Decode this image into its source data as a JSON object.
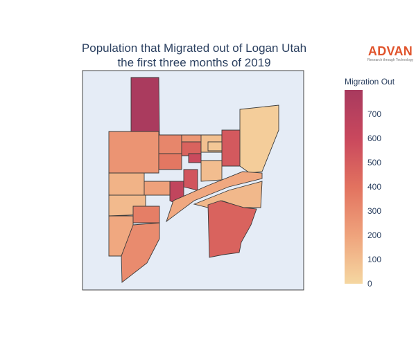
{
  "title": {
    "line1": "Population that Migrated out of Logan Utah",
    "line2": "the first three months of 2019"
  },
  "logo": {
    "text": "ADVAN",
    "tagline": "Research through Technology",
    "color": "#e0532b"
  },
  "colorbar": {
    "title": "Migration Out",
    "min": 0,
    "max": 800,
    "ticks": [
      0,
      100,
      200,
      300,
      400,
      500,
      600,
      700
    ],
    "colorscale": [
      "#f5d7a1",
      "#efa37c",
      "#e2725f",
      "#c9485d",
      "#a83a5e"
    ]
  },
  "map": {
    "background": "#e5ecf6",
    "border_color": "#444444"
  },
  "chart_data": {
    "type": "heatmap",
    "title": "Population that Migrated out of Logan Utah the first three months of 2019",
    "colorbar_title": "Migration Out",
    "range": [
      0,
      800
    ],
    "regions": [
      {
        "id": "north-tall",
        "value": 790
      },
      {
        "id": "east-strip",
        "value": 40
      },
      {
        "id": "west-upper",
        "value": 260
      },
      {
        "id": "west-mid",
        "value": 140
      },
      {
        "id": "west-lower",
        "value": 110
      },
      {
        "id": "west-south",
        "value": 180
      },
      {
        "id": "south-long",
        "value": 300
      },
      {
        "id": "center-a",
        "value": 320
      },
      {
        "id": "center-b",
        "value": 470
      },
      {
        "id": "center-c",
        "value": 590
      },
      {
        "id": "center-d",
        "value": 380
      },
      {
        "id": "center-e",
        "value": 250
      },
      {
        "id": "center-f",
        "value": 90
      },
      {
        "id": "center-g",
        "value": 650
      },
      {
        "id": "center-h",
        "value": 540
      },
      {
        "id": "corridor-1",
        "value": 180
      },
      {
        "id": "corridor-2",
        "value": 120
      },
      {
        "id": "southeast-big",
        "value": 470
      },
      {
        "id": "east-center",
        "value": 520
      },
      {
        "id": "small-1",
        "value": 210
      },
      {
        "id": "small-2",
        "value": 350
      },
      {
        "id": "small-3",
        "value": 60
      },
      {
        "id": "east-lower",
        "value": 100
      }
    ]
  }
}
